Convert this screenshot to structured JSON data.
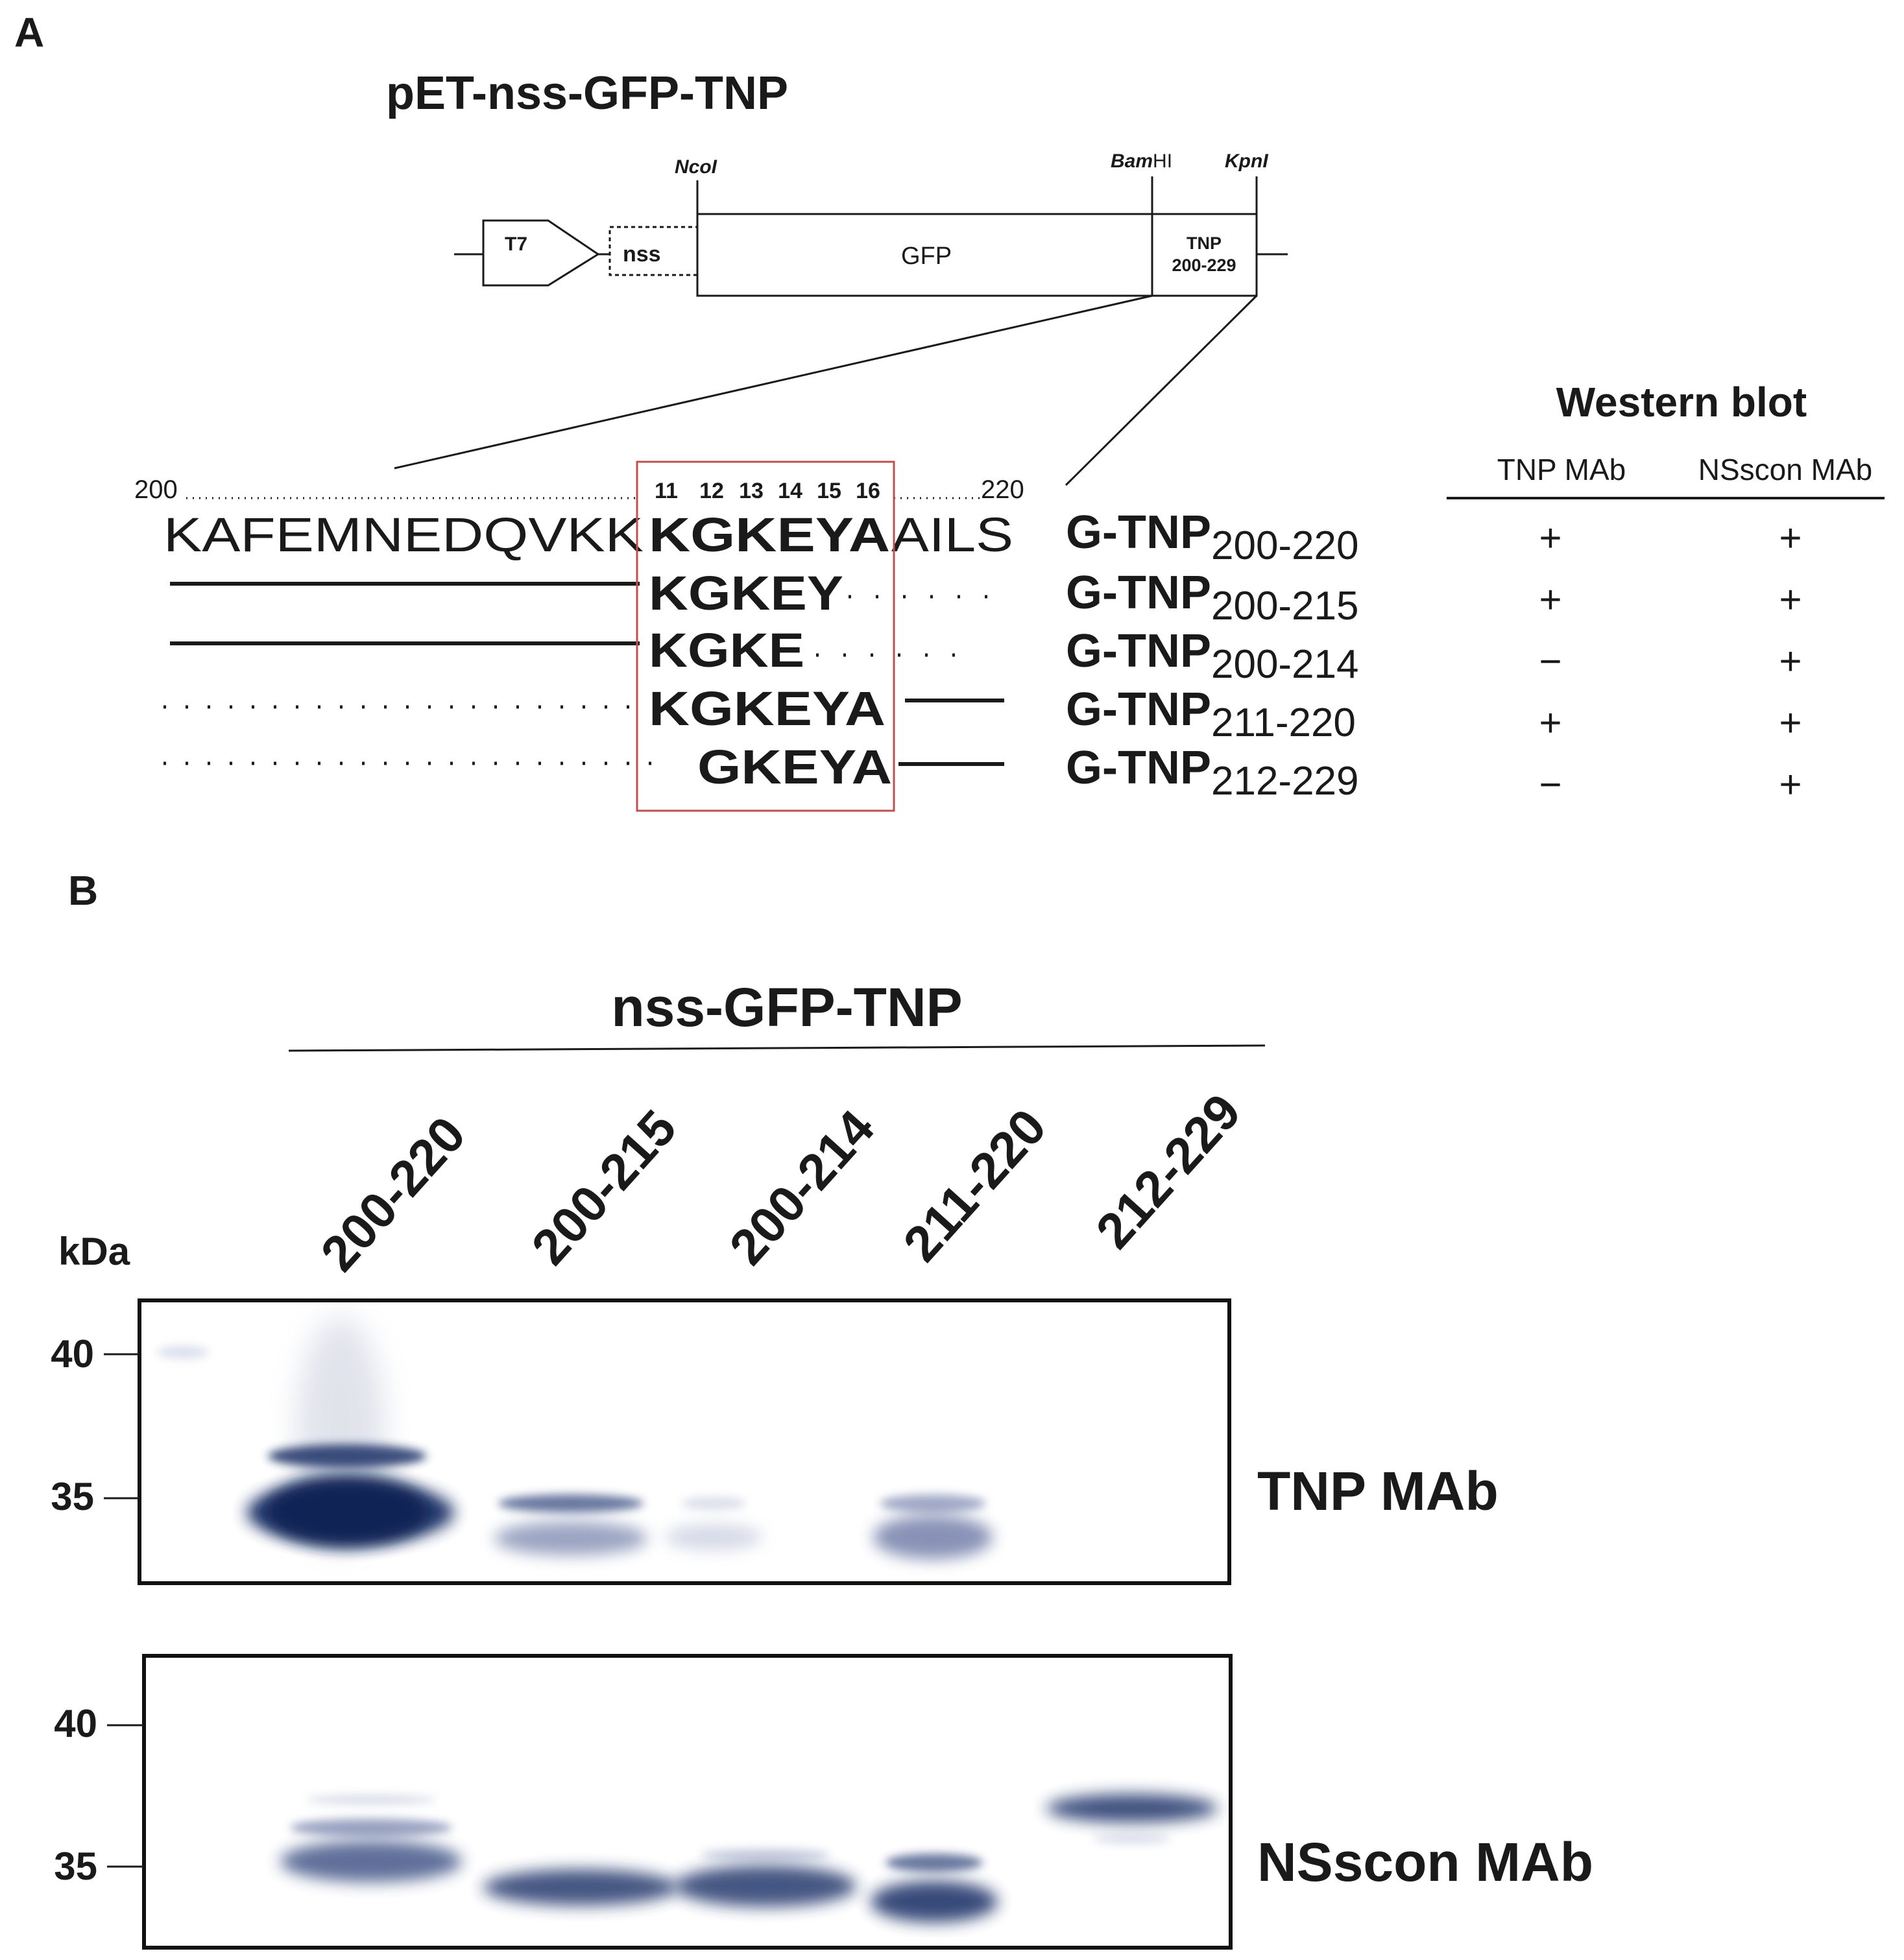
{
  "panel_a": {
    "label": "A",
    "construct_title": "pET-nss-GFP-TNP",
    "sites": {
      "ncoi": "NcoI",
      "bamhi_italic": "Bam",
      "bamhi_rest": "HI",
      "kpni": "KpnI"
    },
    "blocks": {
      "t7": "T7",
      "nss": "nss",
      "gfp": "GFP",
      "tnp_line1": "TNP",
      "tnp_line2": "200-229"
    },
    "ruler": {
      "start": "200",
      "end": "220",
      "positions": [
        "11",
        "12",
        "13",
        "14",
        "15",
        "16"
      ]
    },
    "sequence": {
      "prefix": "KAFEMNEDQVKK",
      "core": "KGKEYA",
      "suffix": "AILS"
    },
    "fragments": [
      {
        "core": "KGKEY",
        "name": "G-TNP",
        "range": "200-220",
        "tnp": "+",
        "nsscon": "+"
      },
      {
        "core": "KGKEY",
        "name": "G-TNP",
        "range": "200-215",
        "tnp": "+",
        "nsscon": "+"
      },
      {
        "core": "KGKE",
        "name": "G-TNP",
        "range": "200-214",
        "tnp": "−",
        "nsscon": "+"
      },
      {
        "core": "KGKEYA",
        "name": "G-TNP",
        "range": "211-220",
        "tnp": "+",
        "nsscon": "+"
      },
      {
        "core": "GKEYA",
        "name": "G-TNP",
        "range": "212-229",
        "tnp": "−",
        "nsscon": "+"
      }
    ],
    "western_blot": {
      "title": "Western blot",
      "col1": "TNP MAb",
      "col2": "NSscon MAb"
    }
  },
  "panel_b": {
    "label": "B",
    "group_label": "nss-GFP-TNP",
    "lanes": [
      "200-220",
      "200-215",
      "200-214",
      "211-220",
      "212-229"
    ],
    "kda_label": "kDa",
    "marker_labels": [
      "40",
      "35"
    ],
    "blot1_label": "TNP MAb",
    "blot2_label": "NSscon MAb"
  },
  "colors": {
    "band": "#1c3168",
    "box_red": "#c0504d",
    "ink": "#1a1a1a"
  }
}
